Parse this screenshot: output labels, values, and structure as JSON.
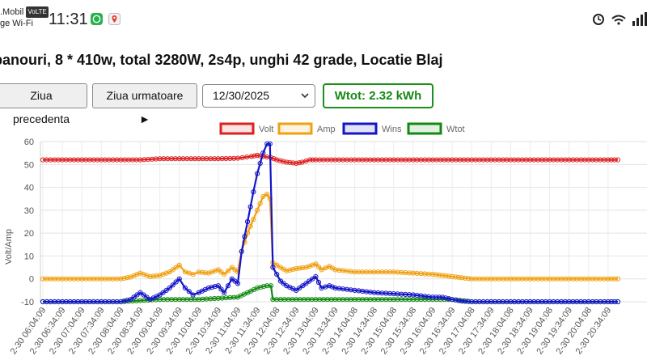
{
  "status_bar": {
    "carrier_line1": ".Mobil",
    "volte_badge": "VoLTE",
    "carrier_line2": "ge Wi-Fi",
    "time": "11:31",
    "icons": [
      "whatsapp-icon",
      "maps-icon",
      "alarm-icon",
      "wifi-icon",
      "signal-icon"
    ]
  },
  "page": {
    "title": "panouri, 8 * 410w, total 3280W, 2s4p, unghi 42 grade, Locatie Blaj"
  },
  "controls": {
    "prev_label": "Ziua precedenta",
    "next_label": "Ziua urmatoare ►",
    "date_value": "12/30/2025",
    "wtot_label": "Wtot: 2.32 kWh"
  },
  "colors": {
    "volt": "#dd2020",
    "amp": "#f0a010",
    "wins": "#1515c8",
    "wtot": "#128a12"
  },
  "chart_data": {
    "type": "line",
    "ylabel": "Volt/Amp",
    "ylim": [
      -10,
      60
    ],
    "yticks": [
      -10,
      0,
      10,
      20,
      30,
      40,
      50,
      60
    ],
    "grid": true,
    "legend": "top",
    "legend_entries": [
      "Volt",
      "Amp",
      "Wins",
      "Wtot"
    ],
    "x_labels": [
      "2-30 06:04:09",
      "2-30 06:34:09",
      "2-30 07:04:09",
      "2-30 07:34:09",
      "2-30 08:04:09",
      "2-30 08:34:09",
      "2-30 09:04:09",
      "2-30 09:34:09",
      "2-30 10:04:09",
      "2-30 10:34:09",
      "2-30 11:04:09",
      "2-30 11:34:09",
      "2-30 12:04:08",
      "2-30 12:34:09",
      "2-30 13:04:09",
      "2-30 13:34:09",
      "2-30 14:04:08",
      "2-30 14:34:08",
      "2-30 15:04:08",
      "2-30 15:34:08",
      "2-30 16:04:09",
      "2-30 16:34:09",
      "2-30 17:04:08",
      "2-30 17:34:09",
      "2-30 18:04:08",
      "2-30 18:34:09",
      "2-30 19:04:08",
      "2-30 19:34:09",
      "2-30 20:04:08",
      "2-30 20:34:09"
    ],
    "series": [
      {
        "name": "Volt",
        "values": [
          [
            0,
            52
          ],
          [
            1,
            52
          ],
          [
            2,
            52
          ],
          [
            3,
            52
          ],
          [
            4,
            52
          ],
          [
            5,
            52
          ],
          [
            6,
            52.5
          ],
          [
            7,
            52.5
          ],
          [
            8,
            52.5
          ],
          [
            9,
            52.5
          ],
          [
            10,
            52.7
          ],
          [
            10.7,
            53.5
          ],
          [
            11,
            54
          ],
          [
            11.3,
            53.5
          ],
          [
            11.7,
            53
          ],
          [
            12,
            52
          ],
          [
            12.5,
            51
          ],
          [
            13,
            50.5
          ],
          [
            13.3,
            51
          ],
          [
            13.7,
            52
          ],
          [
            14,
            52
          ],
          [
            15,
            52
          ],
          [
            16,
            52
          ],
          [
            17,
            52
          ],
          [
            18,
            52
          ],
          [
            19,
            52
          ],
          [
            20,
            52
          ],
          [
            21,
            52
          ],
          [
            22,
            52
          ],
          [
            23,
            52
          ],
          [
            24,
            52
          ],
          [
            25,
            52
          ],
          [
            26,
            52
          ],
          [
            27,
            52
          ],
          [
            28,
            52
          ],
          [
            29,
            52
          ],
          [
            29.5,
            52
          ]
        ]
      },
      {
        "name": "Amp",
        "values": [
          [
            0,
            0
          ],
          [
            1,
            0
          ],
          [
            2,
            0
          ],
          [
            3,
            0
          ],
          [
            4,
            0
          ],
          [
            4.5,
            0.8
          ],
          [
            5,
            2.5
          ],
          [
            5.5,
            1
          ],
          [
            6,
            1.5
          ],
          [
            6.5,
            3
          ],
          [
            7,
            6
          ],
          [
            7.3,
            3
          ],
          [
            7.7,
            2
          ],
          [
            8,
            3
          ],
          [
            8.5,
            2.5
          ],
          [
            9,
            4
          ],
          [
            9.3,
            2
          ],
          [
            9.7,
            5
          ],
          [
            10,
            3
          ],
          [
            10.2,
            12
          ],
          [
            10.5,
            20
          ],
          [
            10.8,
            26
          ],
          [
            11,
            30
          ],
          [
            11.3,
            36
          ],
          [
            11.5,
            37
          ],
          [
            11.65,
            35
          ],
          [
            11.8,
            7
          ],
          [
            12.2,
            5
          ],
          [
            12.5,
            3.5
          ],
          [
            13,
            4.5
          ],
          [
            13.5,
            5
          ],
          [
            14,
            6.5
          ],
          [
            14.3,
            4
          ],
          [
            14.7,
            5.5
          ],
          [
            15,
            4
          ],
          [
            16,
            3
          ],
          [
            17,
            3
          ],
          [
            18,
            3
          ],
          [
            19,
            2.5
          ],
          [
            20,
            2
          ],
          [
            20.5,
            1.5
          ],
          [
            21,
            1
          ],
          [
            21.5,
            0.5
          ],
          [
            22,
            0
          ],
          [
            23,
            0
          ],
          [
            24,
            0
          ],
          [
            25,
            0
          ],
          [
            26,
            0
          ],
          [
            27,
            0
          ],
          [
            28,
            0
          ],
          [
            29,
            0
          ],
          [
            29.5,
            0
          ]
        ]
      },
      {
        "name": "Wins",
        "values": [
          [
            0,
            -10
          ],
          [
            1,
            -10
          ],
          [
            2,
            -10
          ],
          [
            3,
            -10
          ],
          [
            4,
            -10
          ],
          [
            4.5,
            -9
          ],
          [
            5,
            -6
          ],
          [
            5.5,
            -9
          ],
          [
            6,
            -7
          ],
          [
            6.5,
            -4
          ],
          [
            7,
            0
          ],
          [
            7.3,
            -4
          ],
          [
            7.7,
            -7
          ],
          [
            8,
            -6
          ],
          [
            8.5,
            -4
          ],
          [
            9,
            -3
          ],
          [
            9.3,
            -6
          ],
          [
            9.7,
            0
          ],
          [
            10,
            -2
          ],
          [
            10.2,
            12
          ],
          [
            10.5,
            25
          ],
          [
            10.8,
            38
          ],
          [
            11,
            46
          ],
          [
            11.3,
            55
          ],
          [
            11.5,
            59
          ],
          [
            11.65,
            59
          ],
          [
            11.8,
            5
          ],
          [
            12.2,
            -1
          ],
          [
            12.5,
            -3
          ],
          [
            13,
            -5
          ],
          [
            13.5,
            -2
          ],
          [
            14,
            1
          ],
          [
            14.3,
            -4
          ],
          [
            14.7,
            -3
          ],
          [
            15,
            -4
          ],
          [
            16,
            -5
          ],
          [
            17,
            -6
          ],
          [
            18,
            -6.5
          ],
          [
            19,
            -7
          ],
          [
            20,
            -8
          ],
          [
            20.5,
            -8
          ],
          [
            21,
            -9
          ],
          [
            21.5,
            -9.7
          ],
          [
            22,
            -10
          ],
          [
            23,
            -10
          ],
          [
            24,
            -10
          ],
          [
            25,
            -10
          ],
          [
            26,
            -10
          ],
          [
            27,
            -10
          ],
          [
            28,
            -10
          ],
          [
            29,
            -10
          ],
          [
            29.5,
            -10
          ]
        ]
      },
      {
        "name": "Wtot",
        "values": [
          [
            0,
            -10
          ],
          [
            1,
            -10
          ],
          [
            2,
            -10
          ],
          [
            3,
            -10
          ],
          [
            4,
            -10
          ],
          [
            5,
            -9.5
          ],
          [
            6,
            -9
          ],
          [
            7,
            -9
          ],
          [
            8,
            -9
          ],
          [
            9,
            -8.5
          ],
          [
            10,
            -8
          ],
          [
            10.5,
            -6
          ],
          [
            11,
            -4
          ],
          [
            11.5,
            -3
          ],
          [
            11.7,
            -3
          ],
          [
            11.8,
            -9
          ],
          [
            12,
            -9
          ],
          [
            13,
            -9
          ],
          [
            14,
            -9
          ],
          [
            15,
            -9
          ],
          [
            16,
            -9
          ],
          [
            17,
            -9
          ],
          [
            18,
            -9
          ],
          [
            19,
            -9
          ],
          [
            20,
            -9
          ],
          [
            21,
            -9
          ],
          [
            22,
            -10
          ],
          [
            23,
            -10
          ],
          [
            24,
            -10
          ],
          [
            25,
            -10
          ],
          [
            26,
            -10
          ],
          [
            27,
            -10
          ],
          [
            28,
            -10
          ],
          [
            29,
            -10
          ],
          [
            29.5,
            -10
          ]
        ]
      }
    ]
  }
}
